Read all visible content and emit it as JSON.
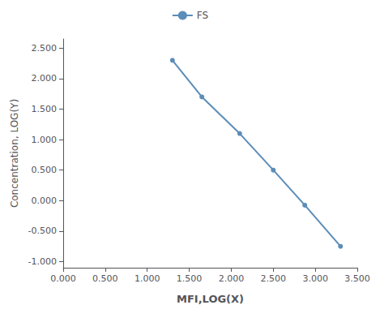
{
  "chart_data": {
    "type": "line",
    "x": [
      1.3,
      1.65,
      2.1,
      2.5,
      2.875,
      3.3
    ],
    "series": [
      {
        "name": "FS",
        "color": "#5b8db8",
        "marker": "circle",
        "values": [
          2.3,
          1.7,
          1.1,
          0.5,
          -0.075,
          -0.75
        ]
      }
    ],
    "xlabel": "MFI,LOG(X)",
    "ylabel": "Concentration, LOG(Y)",
    "xlim": [
      0.0,
      3.5
    ],
    "ylim": [
      -1.1,
      2.65
    ],
    "xticks": [
      {
        "value": 0,
        "label": "0.000"
      },
      {
        "value": 0.5,
        "label": "0.500"
      },
      {
        "value": 1,
        "label": "1.000"
      },
      {
        "value": 1.5,
        "label": "1.500"
      },
      {
        "value": 2,
        "label": "2.000"
      },
      {
        "value": 2.5,
        "label": "2.500"
      },
      {
        "value": 3,
        "label": "3.000"
      },
      {
        "value": 3.5,
        "label": "3.500"
      }
    ],
    "yticks": [
      {
        "value": -1,
        "label": "-1.000"
      },
      {
        "value": -0.5,
        "label": "-0.500"
      },
      {
        "value": 0,
        "label": "0.000"
      },
      {
        "value": 0.5,
        "label": "0.500"
      },
      {
        "value": 1,
        "label": "1.000"
      },
      {
        "value": 1.5,
        "label": "1.500"
      },
      {
        "value": 2,
        "label": "2.000"
      },
      {
        "value": 2.5,
        "label": "2.500"
      }
    ],
    "grid": false,
    "legend": "top"
  }
}
